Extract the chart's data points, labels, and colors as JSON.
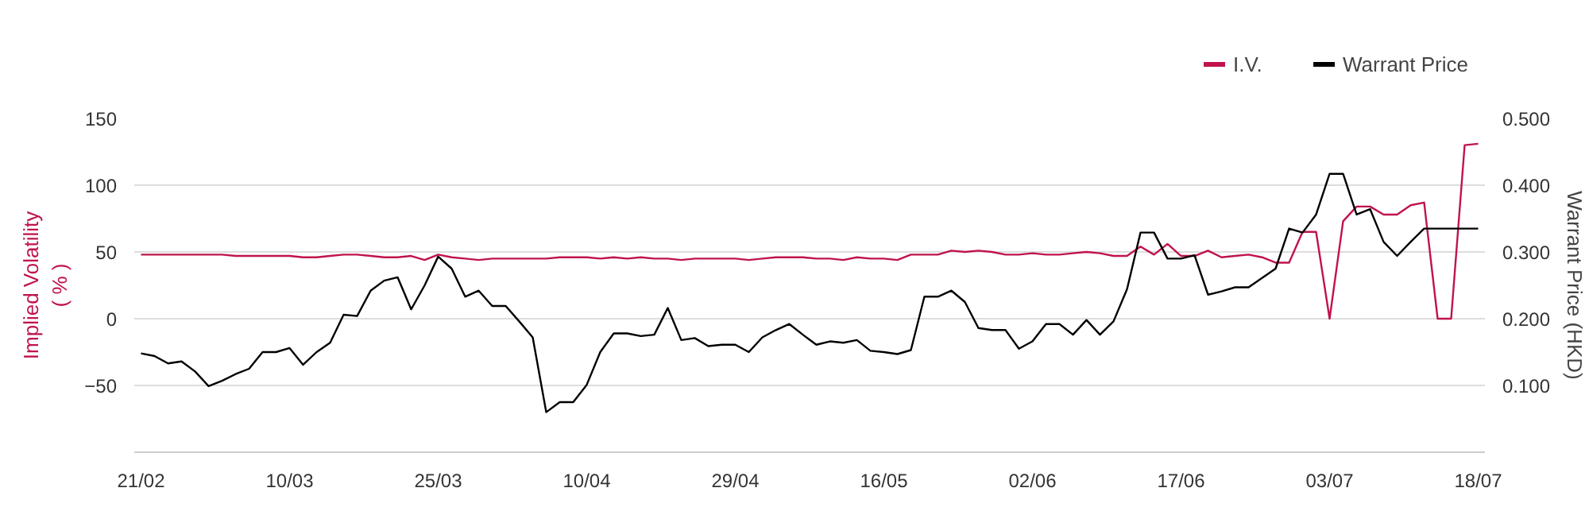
{
  "chart_data": {
    "type": "line",
    "ylabel": "Implied Volatility\n( % )",
    "y2label": "Warrant Price (HKD)",
    "categories": [
      "21/02",
      null,
      null,
      null,
      null,
      null,
      null,
      null,
      null,
      null,
      null,
      "10/03",
      null,
      null,
      null,
      null,
      null,
      null,
      null,
      null,
      null,
      null,
      "25/03",
      null,
      null,
      null,
      null,
      null,
      null,
      null,
      null,
      null,
      null,
      "10/04",
      null,
      null,
      null,
      null,
      null,
      null,
      null,
      null,
      null,
      null,
      "29/04",
      null,
      null,
      null,
      null,
      null,
      null,
      null,
      null,
      null,
      null,
      "16/05",
      null,
      null,
      null,
      null,
      null,
      null,
      null,
      null,
      null,
      null,
      "02/06",
      null,
      null,
      null,
      null,
      null,
      null,
      null,
      null,
      null,
      null,
      "17/06",
      null,
      null,
      null,
      null,
      null,
      null,
      null,
      null,
      null,
      null,
      "03/07",
      null,
      null,
      null,
      null,
      null,
      null,
      null,
      null,
      null,
      null,
      "18/07"
    ],
    "series": [
      {
        "name": "I.V.",
        "color": "#c0144a",
        "values": [
          48,
          48,
          48,
          48,
          48,
          48,
          48,
          47,
          47,
          47,
          47,
          47,
          46,
          46,
          47,
          48,
          48,
          47,
          46,
          46,
          47,
          44,
          48,
          46,
          45,
          44,
          45,
          45,
          45,
          45,
          45,
          46,
          46,
          46,
          45,
          46,
          45,
          46,
          45,
          45,
          44,
          45,
          45,
          45,
          45,
          44,
          45,
          46,
          46,
          46,
          45,
          45,
          44,
          46,
          45,
          45,
          44,
          48,
          48,
          48,
          51,
          50,
          51,
          50,
          48,
          48,
          49,
          48,
          48,
          49,
          50,
          49,
          47,
          47,
          54,
          48,
          56,
          47,
          47,
          51,
          46,
          47,
          48,
          46,
          42,
          42,
          65,
          65,
          0,
          73,
          84,
          84,
          78,
          78,
          85,
          87,
          0,
          0,
          130,
          131
        ]
      },
      {
        "name": "Warrant Price",
        "color": "#000000",
        "axis": "y2",
        "values": [
          0.148,
          0.144,
          0.133,
          0.136,
          0.121,
          0.099,
          0.107,
          0.117,
          0.125,
          0.15,
          0.15,
          0.156,
          0.131,
          0.15,
          0.164,
          0.206,
          0.204,
          0.242,
          0.257,
          0.262,
          0.214,
          0.25,
          0.293,
          0.275,
          0.233,
          0.242,
          0.219,
          0.219,
          0.196,
          0.172,
          0.06,
          0.075,
          0.075,
          0.101,
          0.15,
          0.178,
          0.178,
          0.174,
          0.176,
          0.216,
          0.168,
          0.171,
          0.159,
          0.161,
          0.161,
          0.15,
          0.172,
          0.183,
          0.192,
          0.176,
          0.161,
          0.166,
          0.164,
          0.168,
          0.152,
          0.15,
          0.147,
          0.153,
          0.233,
          0.233,
          0.242,
          0.225,
          0.186,
          0.183,
          0.183,
          0.155,
          0.166,
          0.192,
          0.192,
          0.176,
          0.198,
          0.176,
          0.196,
          0.244,
          0.329,
          0.329,
          0.29,
          0.29,
          0.295,
          0.236,
          0.241,
          0.247,
          0.247,
          0.261,
          0.275,
          0.335,
          0.329,
          0.356,
          0.417,
          0.417,
          0.356,
          0.364,
          0.315,
          0.294,
          0.315,
          0.335,
          0.335,
          0.335,
          0.335,
          0.335
        ]
      }
    ],
    "ylim": [
      -100,
      150
    ],
    "yticks": [
      -50,
      0,
      50,
      100,
      150
    ],
    "y2lim": [
      0,
      0.5
    ],
    "y2ticks": [
      {
        "value": 0.1,
        "label": "0.100"
      },
      {
        "value": 0.2,
        "label": "0.200"
      },
      {
        "value": 0.3,
        "label": "0.300"
      },
      {
        "value": 0.4,
        "label": "0.400"
      },
      {
        "value": 0.5,
        "label": "0.500"
      }
    ],
    "grid": "y",
    "legend": "top right",
    "marker": "none",
    "line_style": "solid"
  }
}
